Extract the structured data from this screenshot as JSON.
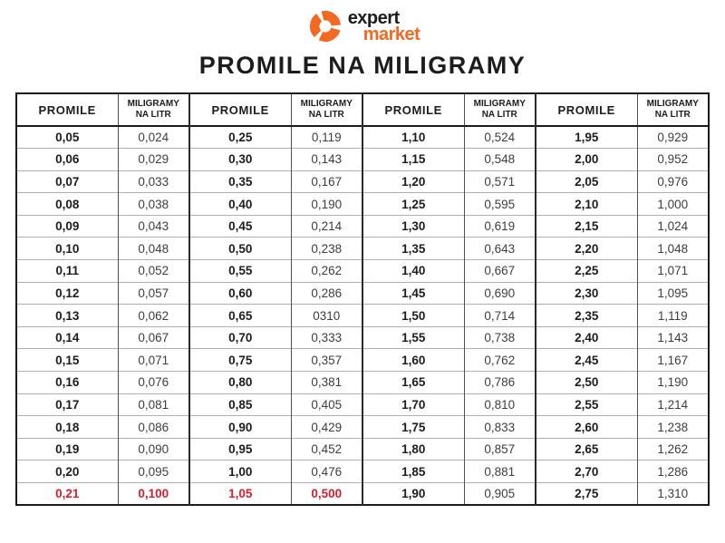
{
  "logo": {
    "brand_top": "expert",
    "brand_bottom": "market",
    "icon": "expert-market-pinwheel-icon",
    "orange": "#f26a21",
    "black": "#1d1d1d"
  },
  "title": "PROMILE NA MILIGRAMY",
  "colors": {
    "accent_orange": "#f26a21",
    "highlight_red": "#d51f2d",
    "text_black": "#1d1d1d",
    "secondary_text": "#3e3e3e",
    "grid_line": "#b0b0b0",
    "border_black": "#1b1b1b"
  },
  "chart_data": {
    "type": "table",
    "title": "PROMILE NA MILIGRAMY",
    "column_headers": [
      "PROMILE",
      "MILIGRAMY NA LITR",
      "PROMILE",
      "MILIGRAMY NA LITR",
      "PROMILE",
      "MILIGRAMY NA LITR",
      "PROMILE",
      "MILIGRAMY NA LITR"
    ],
    "rows": [
      [
        "0,05",
        "0,024",
        "0,25",
        "0,119",
        "1,10",
        "0,524",
        "1,95",
        "0,929"
      ],
      [
        "0,06",
        "0,029",
        "0,30",
        "0,143",
        "1,15",
        "0,548",
        "2,00",
        "0,952"
      ],
      [
        "0,07",
        "0,033",
        "0,35",
        "0,167",
        "1,20",
        "0,571",
        "2,05",
        "0,976"
      ],
      [
        "0,08",
        "0,038",
        "0,40",
        "0,190",
        "1,25",
        "0,595",
        "2,10",
        "1,000"
      ],
      [
        "0,09",
        "0,043",
        "0,45",
        "0,214",
        "1,30",
        "0,619",
        "2,15",
        "1,024"
      ],
      [
        "0,10",
        "0,048",
        "0,50",
        "0,238",
        "1,35",
        "0,643",
        "2,20",
        "1,048"
      ],
      [
        "0,11",
        "0,052",
        "0,55",
        "0,262",
        "1,40",
        "0,667",
        "2,25",
        "1,071"
      ],
      [
        "0,12",
        "0,057",
        "0,60",
        "0,286",
        "1,45",
        "0,690",
        "2,30",
        "1,095"
      ],
      [
        "0,13",
        "0,062",
        "0,65",
        "0310",
        "1,50",
        "0,714",
        "2,35",
        "1,119"
      ],
      [
        "0,14",
        "0,067",
        "0,70",
        "0,333",
        "1,55",
        "0,738",
        "2,40",
        "1,143"
      ],
      [
        "0,15",
        "0,071",
        "0,75",
        "0,357",
        "1,60",
        "0,762",
        "2,45",
        "1,167"
      ],
      [
        "0,16",
        "0,076",
        "0,80",
        "0,381",
        "1,65",
        "0,786",
        "2,50",
        "1,190"
      ],
      [
        "0,17",
        "0,081",
        "0,85",
        "0,405",
        "1,70",
        "0,810",
        "2,55",
        "1,214"
      ],
      [
        "0,18",
        "0,086",
        "0,90",
        "0,429",
        "1,75",
        "0,833",
        "2,60",
        "1,238"
      ],
      [
        "0,19",
        "0,090",
        "0,95",
        "0,452",
        "1,80",
        "0,857",
        "2,65",
        "1,262"
      ],
      [
        "0,20",
        "0,095",
        "1,00",
        "0,476",
        "1,85",
        "0,881",
        "2,70",
        "1,286"
      ],
      [
        "0,21",
        "0,100",
        "1,05",
        "0,500",
        "1,90",
        "0,905",
        "2,75",
        "1,310"
      ]
    ],
    "highlight": {
      "row_index": 16,
      "col_indexes": [
        0,
        1,
        2,
        3
      ],
      "color": "#d51f2d"
    }
  }
}
